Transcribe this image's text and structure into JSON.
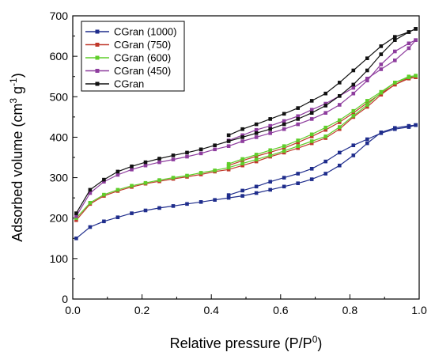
{
  "chart_data": {
    "type": "line",
    "xlabel": "Relative pressure (P/P",
    "xlabel_sup": "0",
    "xlabel_tail": ")",
    "ylabel": "Adsorbed volume (cm",
    "ylabel_sup1": "3",
    "ylabel_mid": " g",
    "ylabel_sup2": "-1",
    "ylabel_tail": ")",
    "xlim": [
      0.0,
      1.0
    ],
    "ylim": [
      0,
      700
    ],
    "xticks": [
      0.0,
      0.2,
      0.4,
      0.6,
      0.8,
      1.0
    ],
    "xtick_labels": [
      "0.0",
      "0.2",
      "0.4",
      "0.6",
      "0.8",
      "1.0"
    ],
    "yticks": [
      0,
      100,
      200,
      300,
      400,
      500,
      600,
      700
    ],
    "ytick_labels": [
      "0",
      "100",
      "200",
      "300",
      "400",
      "500",
      "600",
      "700"
    ],
    "legend_position": "top-left",
    "series": [
      {
        "name": "CGran (1000)",
        "color": "#1f2d8c",
        "adsorption": [
          [
            0.01,
            150
          ],
          [
            0.05,
            178
          ],
          [
            0.09,
            192
          ],
          [
            0.13,
            202
          ],
          [
            0.17,
            212
          ],
          [
            0.21,
            219
          ],
          [
            0.25,
            225
          ],
          [
            0.29,
            230
          ],
          [
            0.33,
            235
          ],
          [
            0.37,
            240
          ],
          [
            0.41,
            245
          ],
          [
            0.45,
            250
          ],
          [
            0.49,
            255
          ],
          [
            0.53,
            262
          ],
          [
            0.57,
            270
          ],
          [
            0.61,
            278
          ],
          [
            0.65,
            286
          ],
          [
            0.69,
            296
          ],
          [
            0.73,
            310
          ],
          [
            0.77,
            330
          ],
          [
            0.81,
            355
          ],
          [
            0.85,
            385
          ],
          [
            0.89,
            412
          ],
          [
            0.93,
            423
          ],
          [
            0.97,
            428
          ],
          [
            0.99,
            430
          ]
        ],
        "desorption": [
          [
            0.99,
            430
          ],
          [
            0.97,
            425
          ],
          [
            0.93,
            420
          ],
          [
            0.89,
            410
          ],
          [
            0.85,
            395
          ],
          [
            0.81,
            380
          ],
          [
            0.77,
            362
          ],
          [
            0.73,
            340
          ],
          [
            0.69,
            322
          ],
          [
            0.65,
            310
          ],
          [
            0.61,
            300
          ],
          [
            0.57,
            290
          ],
          [
            0.53,
            278
          ],
          [
            0.49,
            268
          ],
          [
            0.45,
            257
          ]
        ]
      },
      {
        "name": "CGran (750)",
        "color": "#c0392b",
        "adsorption": [
          [
            0.01,
            195
          ],
          [
            0.05,
            235
          ],
          [
            0.09,
            255
          ],
          [
            0.13,
            267
          ],
          [
            0.17,
            277
          ],
          [
            0.21,
            285
          ],
          [
            0.25,
            291
          ],
          [
            0.29,
            297
          ],
          [
            0.33,
            302
          ],
          [
            0.37,
            308
          ],
          [
            0.41,
            315
          ],
          [
            0.45,
            320
          ],
          [
            0.49,
            330
          ],
          [
            0.53,
            340
          ],
          [
            0.57,
            352
          ],
          [
            0.61,
            362
          ],
          [
            0.65,
            373
          ],
          [
            0.69,
            385
          ],
          [
            0.73,
            398
          ],
          [
            0.77,
            420
          ],
          [
            0.81,
            450
          ],
          [
            0.85,
            475
          ],
          [
            0.89,
            505
          ],
          [
            0.93,
            530
          ],
          [
            0.97,
            545
          ],
          [
            0.99,
            548
          ]
        ],
        "desorption": [
          [
            0.99,
            548
          ],
          [
            0.97,
            547
          ],
          [
            0.93,
            530
          ],
          [
            0.89,
            508
          ],
          [
            0.85,
            485
          ],
          [
            0.81,
            460
          ],
          [
            0.77,
            437
          ],
          [
            0.73,
            418
          ],
          [
            0.69,
            402
          ],
          [
            0.65,
            387
          ],
          [
            0.61,
            373
          ],
          [
            0.57,
            363
          ],
          [
            0.53,
            353
          ],
          [
            0.49,
            342
          ],
          [
            0.45,
            330
          ]
        ]
      },
      {
        "name": "CGran (600)",
        "color": "#5fce2a",
        "adsorption": [
          [
            0.01,
            200
          ],
          [
            0.05,
            238
          ],
          [
            0.09,
            258
          ],
          [
            0.13,
            270
          ],
          [
            0.17,
            280
          ],
          [
            0.21,
            287
          ],
          [
            0.25,
            294
          ],
          [
            0.29,
            300
          ],
          [
            0.33,
            305
          ],
          [
            0.37,
            312
          ],
          [
            0.41,
            318
          ],
          [
            0.45,
            325
          ],
          [
            0.49,
            335
          ],
          [
            0.53,
            345
          ],
          [
            0.57,
            355
          ],
          [
            0.61,
            366
          ],
          [
            0.65,
            378
          ],
          [
            0.69,
            390
          ],
          [
            0.73,
            402
          ],
          [
            0.77,
            425
          ],
          [
            0.81,
            453
          ],
          [
            0.85,
            480
          ],
          [
            0.89,
            510
          ],
          [
            0.93,
            535
          ],
          [
            0.97,
            548
          ],
          [
            0.99,
            552
          ]
        ],
        "desorption": [
          [
            0.99,
            552
          ],
          [
            0.97,
            550
          ],
          [
            0.93,
            535
          ],
          [
            0.89,
            512
          ],
          [
            0.85,
            490
          ],
          [
            0.81,
            465
          ],
          [
            0.77,
            442
          ],
          [
            0.73,
            424
          ],
          [
            0.69,
            407
          ],
          [
            0.65,
            392
          ],
          [
            0.61,
            378
          ],
          [
            0.57,
            368
          ],
          [
            0.53,
            357
          ],
          [
            0.49,
            346
          ],
          [
            0.45,
            334
          ]
        ]
      },
      {
        "name": "CGran (450)",
        "color": "#8e3d9e",
        "adsorption": [
          [
            0.01,
            205
          ],
          [
            0.05,
            262
          ],
          [
            0.09,
            290
          ],
          [
            0.13,
            307
          ],
          [
            0.17,
            320
          ],
          [
            0.21,
            330
          ],
          [
            0.25,
            338
          ],
          [
            0.29,
            345
          ],
          [
            0.33,
            352
          ],
          [
            0.37,
            360
          ],
          [
            0.41,
            370
          ],
          [
            0.45,
            378
          ],
          [
            0.49,
            390
          ],
          [
            0.53,
            400
          ],
          [
            0.57,
            410
          ],
          [
            0.61,
            420
          ],
          [
            0.65,
            432
          ],
          [
            0.69,
            445
          ],
          [
            0.73,
            460
          ],
          [
            0.77,
            480
          ],
          [
            0.81,
            508
          ],
          [
            0.85,
            540
          ],
          [
            0.89,
            580
          ],
          [
            0.93,
            612
          ],
          [
            0.97,
            632
          ],
          [
            0.99,
            640
          ]
        ],
        "desorption": [
          [
            0.99,
            640
          ],
          [
            0.97,
            620
          ],
          [
            0.93,
            590
          ],
          [
            0.89,
            568
          ],
          [
            0.85,
            545
          ],
          [
            0.81,
            522
          ],
          [
            0.77,
            502
          ],
          [
            0.73,
            483
          ],
          [
            0.69,
            468
          ],
          [
            0.65,
            452
          ],
          [
            0.61,
            440
          ],
          [
            0.57,
            428
          ],
          [
            0.53,
            418
          ],
          [
            0.49,
            405
          ],
          [
            0.45,
            392
          ]
        ]
      },
      {
        "name": "CGran",
        "color": "#111111",
        "adsorption": [
          [
            0.01,
            212
          ],
          [
            0.05,
            270
          ],
          [
            0.09,
            295
          ],
          [
            0.13,
            315
          ],
          [
            0.17,
            328
          ],
          [
            0.21,
            338
          ],
          [
            0.25,
            347
          ],
          [
            0.29,
            355
          ],
          [
            0.33,
            362
          ],
          [
            0.37,
            370
          ],
          [
            0.41,
            380
          ],
          [
            0.45,
            390
          ],
          [
            0.49,
            400
          ],
          [
            0.53,
            410
          ],
          [
            0.57,
            420
          ],
          [
            0.61,
            432
          ],
          [
            0.65,
            445
          ],
          [
            0.69,
            460
          ],
          [
            0.73,
            478
          ],
          [
            0.77,
            502
          ],
          [
            0.81,
            530
          ],
          [
            0.85,
            565
          ],
          [
            0.89,
            605
          ],
          [
            0.93,
            640
          ],
          [
            0.97,
            660
          ],
          [
            0.99,
            668
          ]
        ],
        "desorption": [
          [
            0.99,
            668
          ],
          [
            0.97,
            660
          ],
          [
            0.93,
            648
          ],
          [
            0.89,
            625
          ],
          [
            0.85,
            595
          ],
          [
            0.81,
            565
          ],
          [
            0.77,
            535
          ],
          [
            0.73,
            508
          ],
          [
            0.69,
            490
          ],
          [
            0.65,
            472
          ],
          [
            0.61,
            458
          ],
          [
            0.57,
            445
          ],
          [
            0.53,
            432
          ],
          [
            0.49,
            420
          ],
          [
            0.45,
            405
          ]
        ]
      }
    ]
  }
}
